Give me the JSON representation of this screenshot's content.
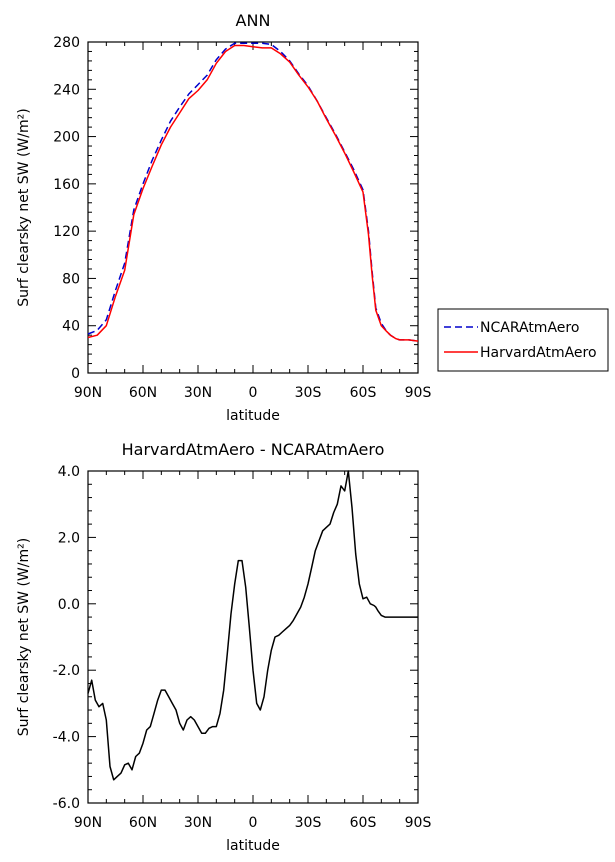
{
  "chart_data": [
    {
      "type": "line",
      "title": "ANN",
      "xlabel": "latitude",
      "ylabel": "Surf clearsky net SW (W/m²)",
      "xlim": [
        90,
        -90
      ],
      "ylim": [
        0,
        280
      ],
      "x_ticks": [
        90,
        60,
        30,
        0,
        -30,
        -60,
        -90
      ],
      "x_tick_labels": [
        "90N",
        "60N",
        "30N",
        "0",
        "30S",
        "60S",
        "90S"
      ],
      "y_ticks": [
        0,
        40,
        80,
        120,
        160,
        200,
        240,
        280
      ],
      "y_tick_labels": [
        "0",
        "40",
        "80",
        "120",
        "160",
        "200",
        "240",
        "280"
      ],
      "legend": "right",
      "series": [
        {
          "name": "NCARAtmAero",
          "color": "#0000cc",
          "dash": "dashed",
          "x": [
            90,
            85,
            80,
            75,
            70,
            65,
            60,
            55,
            50,
            45,
            40,
            35,
            30,
            25,
            20,
            15,
            10,
            5,
            0,
            -5,
            -10,
            -15,
            -20,
            -25,
            -30,
            -35,
            -40,
            -45,
            -50,
            -55,
            -60,
            -63,
            -65,
            -67,
            -70,
            -73,
            -75,
            -78,
            -80,
            -85,
            -90
          ],
          "values": [
            33,
            36,
            45,
            70,
            93,
            138,
            160,
            180,
            197,
            213,
            225,
            236,
            244,
            252,
            265,
            274,
            279,
            279,
            279,
            279,
            278,
            272,
            264,
            253,
            243,
            230,
            216,
            202,
            187,
            172,
            155,
            120,
            85,
            55,
            42,
            35,
            32,
            29,
            28,
            28,
            27
          ]
        },
        {
          "name": "HarvardAtmAero",
          "color": "#ff0000",
          "dash": "solid",
          "x": [
            90,
            85,
            80,
            75,
            70,
            65,
            60,
            55,
            50,
            45,
            40,
            35,
            30,
            25,
            20,
            15,
            10,
            5,
            0,
            -5,
            -10,
            -15,
            -20,
            -25,
            -30,
            -35,
            -40,
            -45,
            -50,
            -55,
            -60,
            -63,
            -65,
            -67,
            -70,
            -73,
            -75,
            -78,
            -80,
            -85,
            -90
          ],
          "values": [
            30,
            32,
            40,
            65,
            87,
            134,
            156,
            175,
            193,
            208,
            220,
            232,
            239,
            248,
            262,
            272,
            277,
            277,
            276,
            275,
            275,
            270,
            263,
            252,
            242,
            230,
            215,
            201,
            186,
            170,
            153,
            117,
            82,
            53,
            40,
            35,
            32,
            29,
            28,
            28,
            27
          ]
        }
      ]
    },
    {
      "type": "line",
      "title": "HarvardAtmAero - NCARAtmAero",
      "xlabel": "latitude",
      "ylabel": "Surf clearsky net SW (W/m²)",
      "xlim": [
        90,
        -90
      ],
      "ylim": [
        -6,
        4
      ],
      "x_ticks": [
        90,
        60,
        30,
        0,
        -30,
        -60,
        -90
      ],
      "x_tick_labels": [
        "90N",
        "60N",
        "30N",
        "0",
        "30S",
        "60S",
        "90S"
      ],
      "y_ticks": [
        -6,
        -4,
        -2,
        0,
        2,
        4
      ],
      "y_tick_labels": [
        "-6.0",
        "-4.0",
        "-2.0",
        "0.0",
        "2.0",
        "4.0"
      ],
      "series": [
        {
          "color": "#000000",
          "dash": "solid",
          "x": [
            90,
            88,
            86,
            84,
            82,
            80,
            78,
            76,
            74,
            72,
            70,
            68,
            66,
            64,
            62,
            60,
            58,
            56,
            54,
            52,
            50,
            48,
            46,
            44,
            42,
            40,
            38,
            36,
            34,
            32,
            30,
            28,
            26,
            24,
            22,
            20,
            18,
            16,
            14,
            12,
            10,
            8,
            6,
            4,
            2,
            0,
            -2,
            -4,
            -6,
            -8,
            -10,
            -12,
            -14,
            -16,
            -18,
            -20,
            -22,
            -24,
            -26,
            -28,
            -30,
            -32,
            -34,
            -36,
            -38,
            -40,
            -42,
            -44,
            -46,
            -48,
            -50,
            -52,
            -54,
            -56,
            -58,
            -60,
            -62,
            -64,
            -66,
            -67,
            -68,
            -70,
            -72,
            -74,
            -76,
            -78,
            -80,
            -82,
            -84,
            -86,
            -88,
            -90
          ],
          "values": [
            -2.7,
            -2.3,
            -2.9,
            -3.1,
            -3.0,
            -3.5,
            -4.9,
            -5.3,
            -5.2,
            -5.1,
            -4.85,
            -4.8,
            -5.0,
            -4.6,
            -4.5,
            -4.2,
            -3.8,
            -3.7,
            -3.3,
            -2.9,
            -2.6,
            -2.6,
            -2.8,
            -3.0,
            -3.2,
            -3.6,
            -3.8,
            -3.5,
            -3.4,
            -3.5,
            -3.7,
            -3.9,
            -3.9,
            -3.75,
            -3.7,
            -3.7,
            -3.3,
            -2.6,
            -1.5,
            -0.3,
            0.6,
            1.3,
            1.3,
            0.5,
            -0.7,
            -2.0,
            -3.0,
            -3.2,
            -2.8,
            -2.0,
            -1.4,
            -1.0,
            -0.95,
            -0.85,
            -0.75,
            -0.65,
            -0.5,
            -0.3,
            -0.1,
            0.2,
            0.6,
            1.1,
            1.6,
            1.9,
            2.2,
            2.3,
            2.4,
            2.75,
            3.0,
            3.55,
            3.4,
            4.0,
            2.9,
            1.5,
            0.6,
            0.15,
            0.2,
            0.0,
            -0.05,
            -0.1,
            -0.2,
            -0.35,
            -0.4,
            -0.4,
            -0.4,
            -0.4,
            -0.4,
            -0.4,
            -0.4,
            -0.4,
            -0.4,
            -0.4
          ]
        }
      ]
    }
  ]
}
